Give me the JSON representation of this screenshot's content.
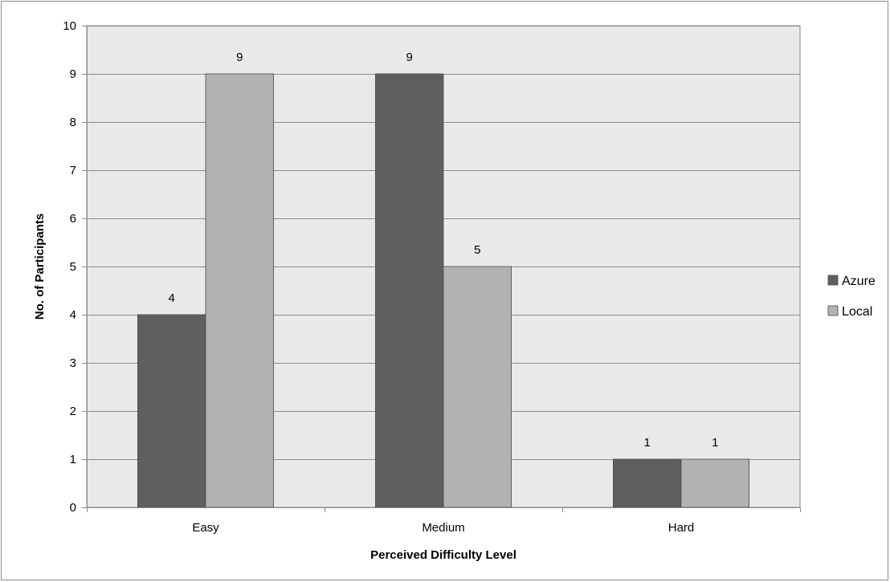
{
  "chart_data": {
    "type": "bar",
    "title": "",
    "xlabel": "Perceived Difficulty Level",
    "ylabel": "No. of Participants",
    "categories": [
      "Easy",
      "Medium",
      "Hard"
    ],
    "series": [
      {
        "name": "Azure",
        "values": [
          4,
          9,
          1
        ],
        "color": "#5f5f5f"
      },
      {
        "name": "Local",
        "values": [
          9,
          5,
          1
        ],
        "color": "#b2b2b2"
      }
    ],
    "ylim": [
      0,
      10
    ],
    "yticks": [
      "0",
      "1",
      "2",
      "3",
      "4",
      "5",
      "6",
      "7",
      "8",
      "9",
      "10"
    ],
    "grid": true,
    "legend_position": "right",
    "plot_background": "#e9e9e9",
    "gridline_color": "#8c8c8c"
  }
}
